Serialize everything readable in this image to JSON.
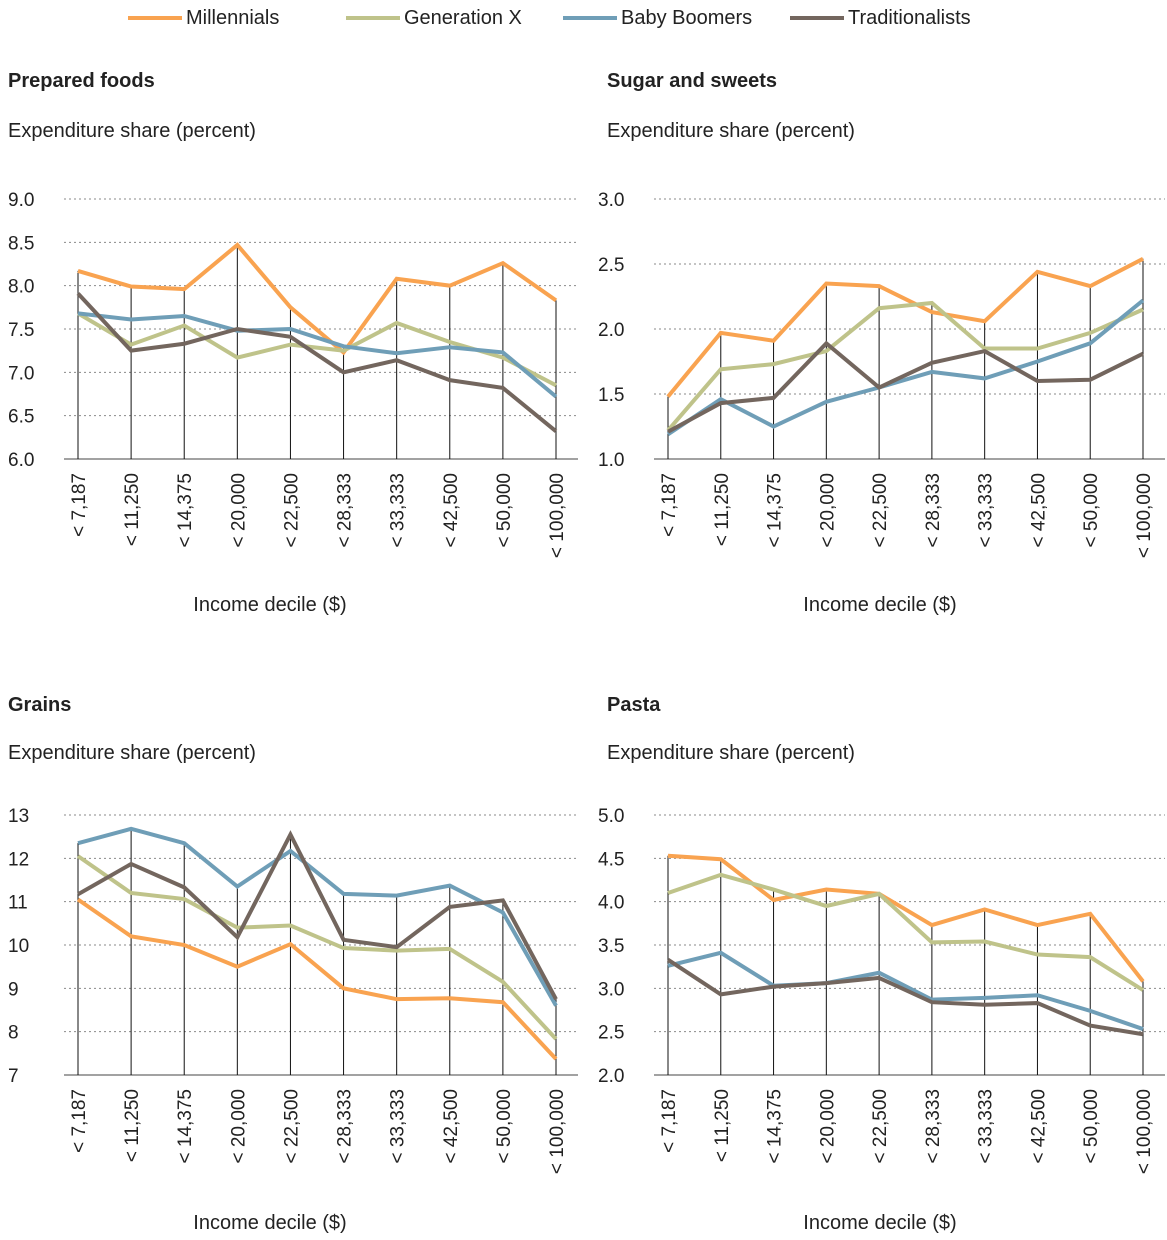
{
  "colors": {
    "millennials": "#F9A350",
    "generation_x": "#BFC38A",
    "baby_boomers": "#6F9EB7",
    "traditionalists": "#73665E"
  },
  "legend": [
    "Millennials",
    "Generation X",
    "Baby Boomers",
    "Traditionalists"
  ],
  "chart_data": [
    {
      "type": "line",
      "title": "Prepared foods",
      "ylabel": "Expenditure share (percent)",
      "xlabel": "Income decile ($)",
      "categories": [
        "< 7,187",
        "< 11,250",
        "< 14,375",
        "< 20,000",
        "< 22,500",
        "< 28,333",
        "< 33,333",
        "< 42,500",
        "< 50,000",
        "< 100,000"
      ],
      "ylim": [
        6.0,
        9.0
      ],
      "yticks": [
        "6.0",
        "6.5",
        "7.0",
        "7.5",
        "8.0",
        "8.5",
        "9.0"
      ],
      "grid": true,
      "series": [
        {
          "name": "Millennials",
          "values": [
            8.17,
            7.99,
            7.96,
            8.47,
            7.75,
            7.23,
            8.08,
            8.0,
            8.26,
            7.83
          ]
        },
        {
          "name": "Generation X",
          "values": [
            7.68,
            7.32,
            7.54,
            7.17,
            7.32,
            7.25,
            7.57,
            7.35,
            7.17,
            6.85
          ]
        },
        {
          "name": "Baby Boomers",
          "values": [
            7.68,
            7.61,
            7.65,
            7.48,
            7.5,
            7.3,
            7.22,
            7.29,
            7.23,
            6.72
          ]
        },
        {
          "name": "Traditionalists",
          "values": [
            7.91,
            7.25,
            7.33,
            7.5,
            7.41,
            7.0,
            7.14,
            6.91,
            6.82,
            6.32
          ]
        }
      ]
    },
    {
      "type": "line",
      "title": "Sugar and sweets",
      "ylabel": "Expenditure share (percent)",
      "xlabel": "Income decile ($)",
      "categories": [
        "< 7,187",
        "< 11,250",
        "< 14,375",
        "< 20,000",
        "< 22,500",
        "< 28,333",
        "< 33,333",
        "< 42,500",
        "< 50,000",
        "< 100,000"
      ],
      "ylim": [
        1.0,
        3.0
      ],
      "yticks": [
        "1.0",
        "1.5",
        "2.0",
        "2.5",
        "3.0"
      ],
      "grid": true,
      "series": [
        {
          "name": "Millennials",
          "values": [
            1.48,
            1.97,
            1.91,
            2.35,
            2.33,
            2.13,
            2.06,
            2.44,
            2.33,
            2.54
          ]
        },
        {
          "name": "Generation X",
          "values": [
            1.22,
            1.69,
            1.73,
            1.83,
            2.16,
            2.2,
            1.85,
            1.85,
            1.97,
            2.15
          ]
        },
        {
          "name": "Baby Boomers",
          "values": [
            1.19,
            1.46,
            1.25,
            1.44,
            1.55,
            1.67,
            1.62,
            1.75,
            1.89,
            2.22
          ]
        },
        {
          "name": "Traditionalists",
          "values": [
            1.21,
            1.43,
            1.47,
            1.89,
            1.55,
            1.74,
            1.83,
            1.6,
            1.61,
            1.81
          ]
        }
      ]
    },
    {
      "type": "line",
      "title": "Grains",
      "ylabel": "Expenditure share (percent)",
      "xlabel": "Income decile ($)",
      "categories": [
        "< 7,187",
        "< 11,250",
        "< 14,375",
        "< 20,000",
        "< 22,500",
        "< 28,333",
        "< 33,333",
        "< 42,500",
        "< 50,000",
        "< 100,000"
      ],
      "ylim": [
        7,
        13
      ],
      "yticks": [
        "7",
        "8",
        "9",
        "10",
        "11",
        "12",
        "13"
      ],
      "grid": true,
      "series": [
        {
          "name": "Millennials",
          "values": [
            11.05,
            10.2,
            10.0,
            9.5,
            10.02,
            9.0,
            8.75,
            8.77,
            8.68,
            7.37
          ]
        },
        {
          "name": "Generation X",
          "values": [
            12.05,
            11.2,
            11.06,
            10.4,
            10.45,
            9.93,
            9.87,
            9.91,
            9.15,
            7.83
          ]
        },
        {
          "name": "Baby Boomers",
          "values": [
            12.35,
            12.68,
            12.35,
            11.35,
            12.17,
            11.18,
            11.14,
            11.37,
            10.75,
            8.6
          ]
        },
        {
          "name": "Traditionalists",
          "values": [
            11.17,
            11.87,
            11.33,
            10.18,
            12.55,
            10.12,
            9.95,
            10.88,
            11.03,
            8.75
          ]
        }
      ]
    },
    {
      "type": "line",
      "title": "Pasta",
      "ylabel": "Expenditure share (percent)",
      "xlabel": "Income decile ($)",
      "categories": [
        "< 7,187",
        "< 11,250",
        "< 14,375",
        "< 20,000",
        "< 22,500",
        "< 28,333",
        "< 33,333",
        "< 42,500",
        "< 50,000",
        "< 100,000"
      ],
      "ylim": [
        2.0,
        5.0
      ],
      "yticks": [
        "2.0",
        "2.5",
        "3.0",
        "3.5",
        "4.0",
        "4.5",
        "5.0"
      ],
      "grid": true,
      "series": [
        {
          "name": "Millennials",
          "values": [
            4.53,
            4.49,
            4.02,
            4.14,
            4.09,
            3.73,
            3.91,
            3.73,
            3.86,
            3.08
          ]
        },
        {
          "name": "Generation X",
          "values": [
            4.1,
            4.31,
            4.14,
            3.95,
            4.09,
            3.53,
            3.54,
            3.39,
            3.36,
            2.98
          ]
        },
        {
          "name": "Baby Boomers",
          "values": [
            3.26,
            3.41,
            3.03,
            3.06,
            3.18,
            2.87,
            2.89,
            2.92,
            2.74,
            2.53
          ]
        },
        {
          "name": "Traditionalists",
          "values": [
            3.33,
            2.93,
            3.02,
            3.06,
            3.12,
            2.84,
            2.81,
            2.83,
            2.57,
            2.47
          ]
        }
      ]
    }
  ]
}
